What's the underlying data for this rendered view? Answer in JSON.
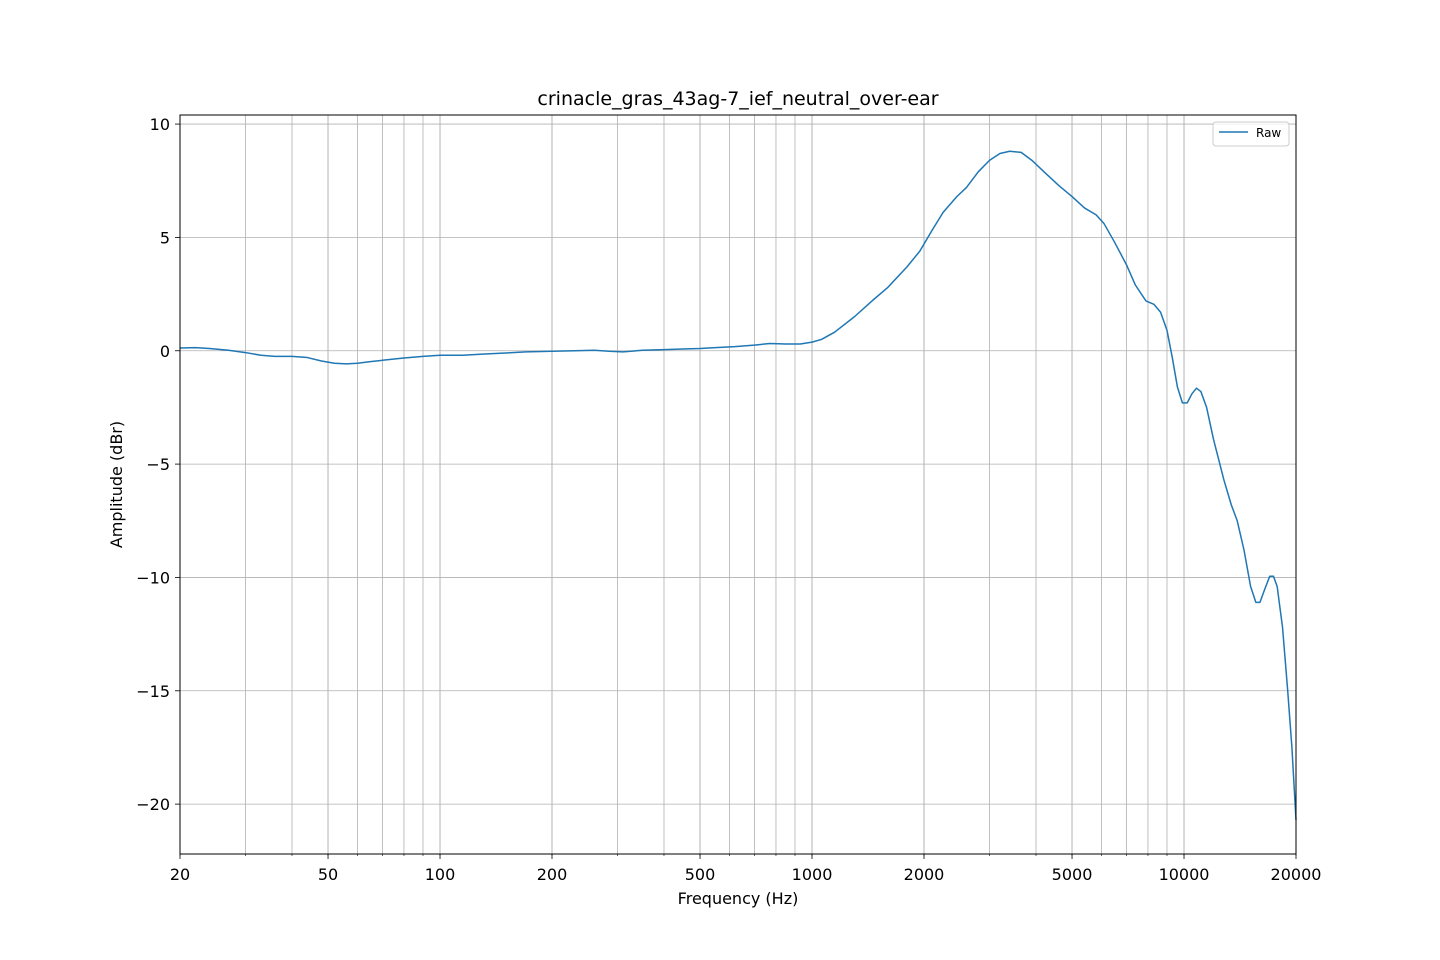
{
  "chart_data": {
    "type": "line",
    "title": "crinacle_gras_43ag-7_ief_neutral_over-ear",
    "xlabel": "Frequency (Hz)",
    "ylabel": "Amplitude (dBr)",
    "xscale": "log",
    "xlim": [
      20,
      20000
    ],
    "ylim": [
      -22.2,
      10.4
    ],
    "grid": true,
    "legend": "top-right",
    "xticks": [
      {
        "value": 20,
        "label": "20"
      },
      {
        "value": 50,
        "label": "50"
      },
      {
        "value": 100,
        "label": "100"
      },
      {
        "value": 200,
        "label": "200"
      },
      {
        "value": 500,
        "label": "500"
      },
      {
        "value": 1000,
        "label": "1000"
      },
      {
        "value": 2000,
        "label": "2000"
      },
      {
        "value": 5000,
        "label": "5000"
      },
      {
        "value": 10000,
        "label": "10000"
      },
      {
        "value": 20000,
        "label": "20000"
      }
    ],
    "yticks": [
      {
        "value": 10,
        "label": "10"
      },
      {
        "value": 5,
        "label": "5"
      },
      {
        "value": 0,
        "label": "0"
      },
      {
        "value": -5,
        "label": "−5"
      },
      {
        "value": -10,
        "label": "−10"
      },
      {
        "value": -15,
        "label": "−15"
      },
      {
        "value": -20,
        "label": "−20"
      }
    ],
    "series": [
      {
        "name": "Raw",
        "color": "#1f77b4",
        "points": [
          [
            20,
            0.12
          ],
          [
            22,
            0.14
          ],
          [
            24,
            0.1
          ],
          [
            27,
            0.02
          ],
          [
            30,
            -0.08
          ],
          [
            33,
            -0.2
          ],
          [
            36,
            -0.25
          ],
          [
            40,
            -0.25
          ],
          [
            44,
            -0.3
          ],
          [
            48,
            -0.45
          ],
          [
            52,
            -0.55
          ],
          [
            56,
            -0.58
          ],
          [
            60,
            -0.55
          ],
          [
            65,
            -0.48
          ],
          [
            70,
            -0.42
          ],
          [
            80,
            -0.32
          ],
          [
            90,
            -0.25
          ],
          [
            100,
            -0.2
          ],
          [
            115,
            -0.2
          ],
          [
            130,
            -0.15
          ],
          [
            150,
            -0.1
          ],
          [
            170,
            -0.05
          ],
          [
            200,
            -0.02
          ],
          [
            230,
            0.0
          ],
          [
            260,
            0.02
          ],
          [
            285,
            -0.02
          ],
          [
            310,
            -0.05
          ],
          [
            350,
            0.02
          ],
          [
            400,
            0.05
          ],
          [
            450,
            0.08
          ],
          [
            500,
            0.1
          ],
          [
            550,
            0.14
          ],
          [
            620,
            0.18
          ],
          [
            700,
            0.25
          ],
          [
            770,
            0.32
          ],
          [
            850,
            0.3
          ],
          [
            930,
            0.3
          ],
          [
            1000,
            0.38
          ],
          [
            1060,
            0.5
          ],
          [
            1150,
            0.82
          ],
          [
            1300,
            1.5
          ],
          [
            1450,
            2.2
          ],
          [
            1600,
            2.8
          ],
          [
            1800,
            3.7
          ],
          [
            1950,
            4.4
          ],
          [
            2100,
            5.3
          ],
          [
            2250,
            6.1
          ],
          [
            2450,
            6.8
          ],
          [
            2600,
            7.2
          ],
          [
            2800,
            7.9
          ],
          [
            3000,
            8.4
          ],
          [
            3200,
            8.7
          ],
          [
            3400,
            8.8
          ],
          [
            3650,
            8.75
          ],
          [
            3900,
            8.4
          ],
          [
            4200,
            7.9
          ],
          [
            4600,
            7.3
          ],
          [
            5000,
            6.8
          ],
          [
            5400,
            6.3
          ],
          [
            5800,
            6.0
          ],
          [
            6100,
            5.6
          ],
          [
            6500,
            4.8
          ],
          [
            7000,
            3.8
          ],
          [
            7400,
            2.9
          ],
          [
            7900,
            2.2
          ],
          [
            8300,
            2.05
          ],
          [
            8650,
            1.7
          ],
          [
            9000,
            0.9
          ],
          [
            9300,
            -0.3
          ],
          [
            9600,
            -1.6
          ],
          [
            9900,
            -2.3
          ],
          [
            10200,
            -2.3
          ],
          [
            10500,
            -1.9
          ],
          [
            10800,
            -1.65
          ],
          [
            11100,
            -1.8
          ],
          [
            11500,
            -2.5
          ],
          [
            12000,
            -3.9
          ],
          [
            12800,
            -5.7
          ],
          [
            13400,
            -6.8
          ],
          [
            13900,
            -7.5
          ],
          [
            14500,
            -8.8
          ],
          [
            15100,
            -10.4
          ],
          [
            15600,
            -11.1
          ],
          [
            16000,
            -11.1
          ],
          [
            16500,
            -10.5
          ],
          [
            17000,
            -9.95
          ],
          [
            17400,
            -9.95
          ],
          [
            17800,
            -10.4
          ],
          [
            18400,
            -12.2
          ],
          [
            19000,
            -15.0
          ],
          [
            19500,
            -17.5
          ],
          [
            20000,
            -20.7
          ]
        ]
      }
    ]
  }
}
